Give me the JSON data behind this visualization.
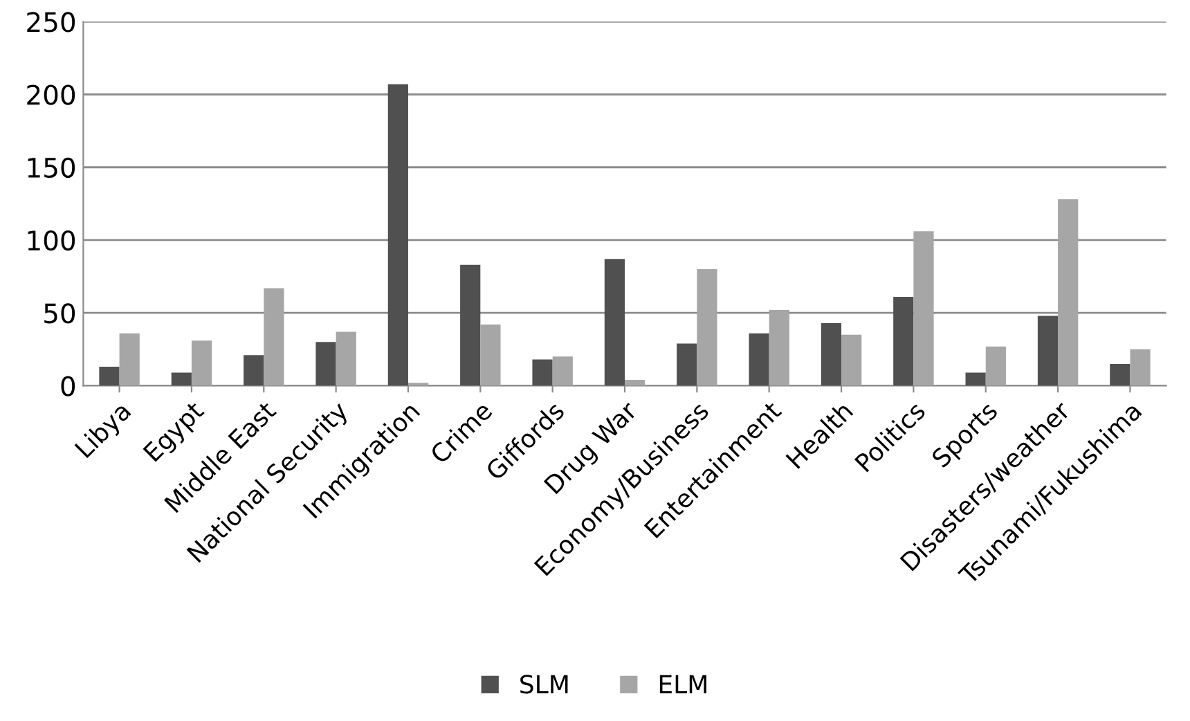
{
  "chart_data": {
    "type": "bar",
    "categories": [
      "Libya",
      "Egypt",
      "Middle East",
      "National Security",
      "Immigration",
      "Crime",
      "Giffords",
      "Drug War",
      "Economy/Business",
      "Entertainment",
      "Health",
      "Politics",
      "Sports",
      "Disasters/weather",
      "Tsunami/Fukushima"
    ],
    "series": [
      {
        "name": "SLM",
        "color": "#505050",
        "values": [
          13,
          9,
          21,
          30,
          207,
          83,
          18,
          87,
          29,
          36,
          43,
          61,
          9,
          48,
          15
        ]
      },
      {
        "name": "ELM",
        "color": "#a6a6a6",
        "values": [
          36,
          31,
          67,
          37,
          2,
          42,
          20,
          4,
          80,
          52,
          35,
          106,
          27,
          128,
          25
        ]
      }
    ],
    "ylim": [
      0,
      250
    ],
    "yticks": [
      0,
      50,
      100,
      150,
      200,
      250
    ],
    "grid": "y",
    "legend": "bottom"
  }
}
